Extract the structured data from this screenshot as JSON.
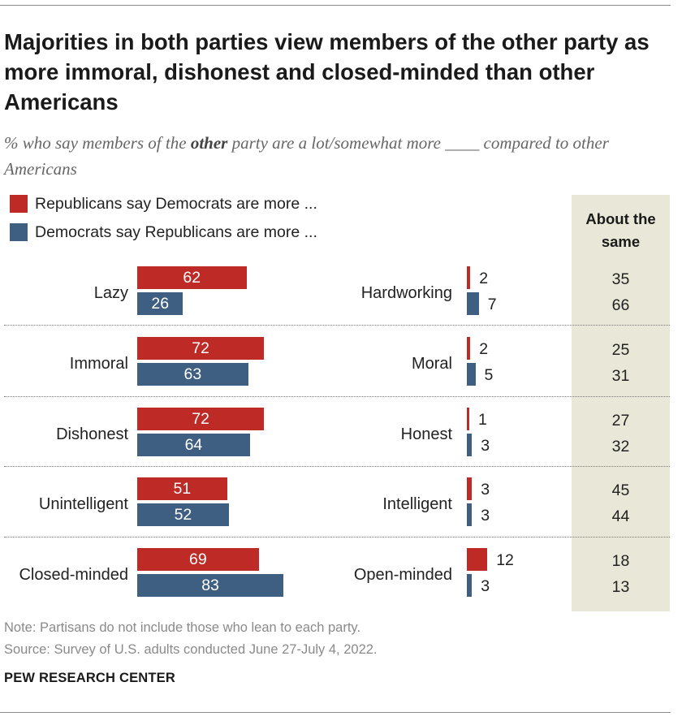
{
  "title": "Majorities in both parties view members of the other party as more immoral, dishonest and closed-minded than other Americans",
  "subtitle": {
    "before": "% who say members of the ",
    "emphasis": "other",
    "after": " party are a lot/somewhat more ____ compared to other Americans"
  },
  "legend": {
    "rep": "Republicans say Democrats are more ...",
    "dem": "Democrats say Republicans are more ..."
  },
  "same_header": "About the same",
  "colors": {
    "rep": "#be2a26",
    "dem": "#3f5f82",
    "panel": "#e9e8d8"
  },
  "chart_data": {
    "type": "bar",
    "title": "Majorities in both parties view members of the other party as more immoral, dishonest and closed-minded than other Americans",
    "series_names": [
      "Republicans say Democrats are more ...",
      "Democrats say Republicans are more ..."
    ],
    "rows": [
      {
        "negative": "Lazy",
        "positive": "Hardworking",
        "neg": [
          62,
          26
        ],
        "pos": [
          2,
          7
        ],
        "same": [
          35,
          66
        ]
      },
      {
        "negative": "Immoral",
        "positive": "Moral",
        "neg": [
          72,
          63
        ],
        "pos": [
          2,
          5
        ],
        "same": [
          25,
          31
        ]
      },
      {
        "negative": "Dishonest",
        "positive": "Honest",
        "neg": [
          72,
          64
        ],
        "pos": [
          1,
          3
        ],
        "same": [
          27,
          32
        ]
      },
      {
        "negative": "Unintelligent",
        "positive": "Intelligent",
        "neg": [
          51,
          52
        ],
        "pos": [
          3,
          3
        ],
        "same": [
          45,
          44
        ]
      },
      {
        "negative": "Closed-minded",
        "positive": "Open-minded",
        "neg": [
          69,
          83
        ],
        "pos": [
          12,
          3
        ],
        "same": [
          18,
          13
        ]
      }
    ]
  },
  "note": "Note: Partisans do not include those who lean to each party.",
  "source": "Source: Survey of U.S. adults conducted June 27-July 4, 2022.",
  "brand": "PEW RESEARCH CENTER"
}
